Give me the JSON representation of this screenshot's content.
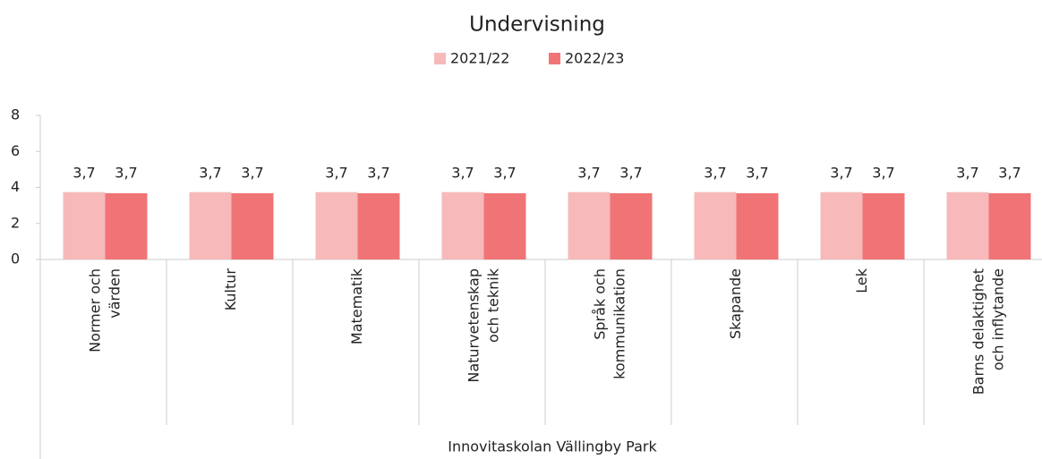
{
  "chart_data": {
    "type": "bar",
    "title": "Undervisning",
    "x_label": "Innovitaskolan Vällingby Park",
    "categories": [
      "Normer och\nvärden",
      "Kultur",
      "Matematik",
      "Naturvetenskap\noch teknik",
      "Språk och\nkommunikation",
      "Skapande",
      "Lek",
      "Barns delaktighet\noch inflytande"
    ],
    "series": [
      {
        "name": "2021/22",
        "color": "#f7b9b9",
        "values": [
          3.74,
          3.74,
          3.74,
          3.74,
          3.74,
          3.74,
          3.74,
          3.74
        ],
        "value_labels": [
          "3,7",
          "3,7",
          "3,7",
          "3,7",
          "3,7",
          "3,7",
          "3,7",
          "3,7"
        ]
      },
      {
        "name": "2022/23",
        "color": "#f07476",
        "values": [
          3.68,
          3.68,
          3.68,
          3.68,
          3.68,
          3.68,
          3.68,
          3.68
        ],
        "value_labels": [
          "3,7",
          "3,7",
          "3,7",
          "3,7",
          "3,7",
          "3,7",
          "3,7",
          "3,7"
        ]
      }
    ],
    "ylim": [
      0,
      8
    ],
    "yticks": [
      0,
      2,
      4,
      6,
      8
    ],
    "legend": "top"
  }
}
